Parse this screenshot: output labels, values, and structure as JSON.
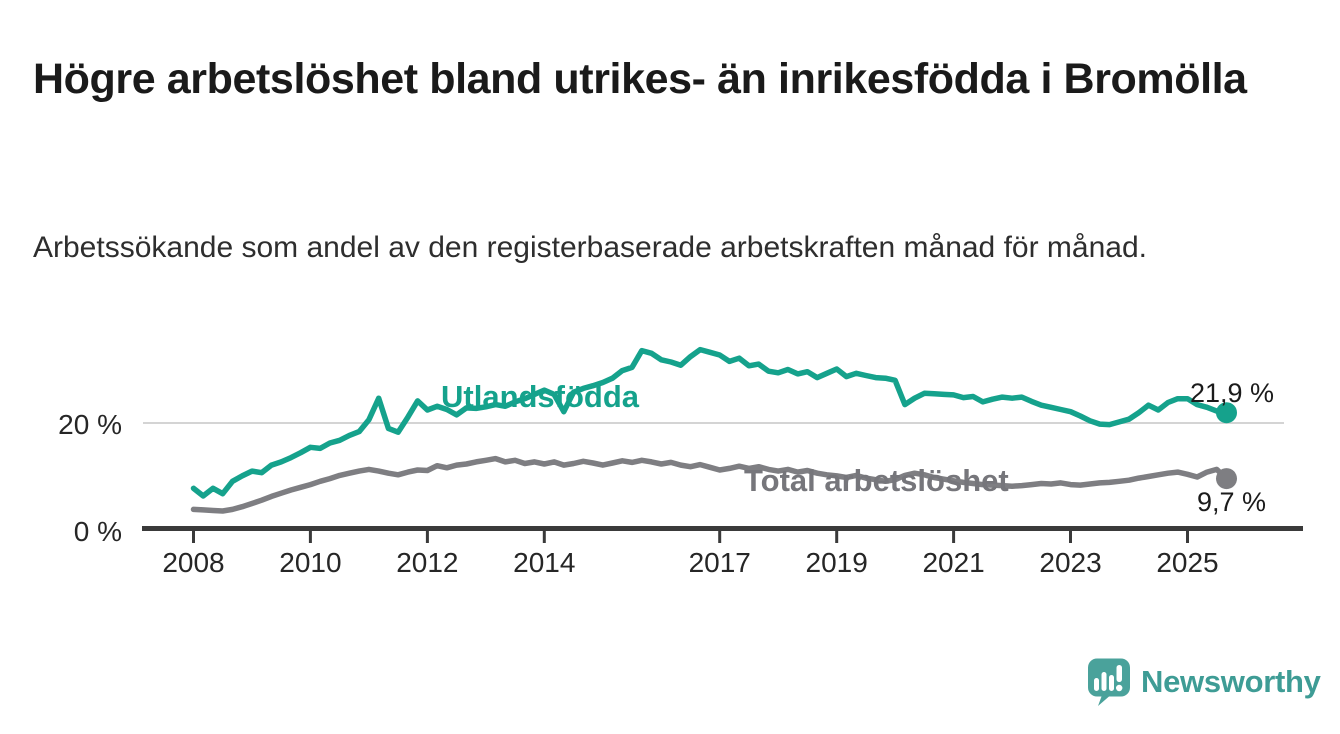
{
  "header": {
    "title": "Högre arbetslöshet bland utrikes- än inrikesfödda i Bromölla",
    "subtitle": "Arbetssökande som andel av den registerbaserade arbetskraften månad för månad."
  },
  "footer": {
    "brand": "Newsworthy",
    "logo_icon": "speech-bubble-with-bar-chart-and-exclamation"
  },
  "colors": {
    "accent_teal": "#15A28C",
    "series_gray": "#7E7E82",
    "axis": "#3A3A3A",
    "gridline": "#D4D4D4",
    "logo_teal": "#3E9C95",
    "logo_icon_fill": "#4AA29B"
  },
  "chart_data": {
    "type": "line",
    "title": "Högre arbetslöshet bland utrikes- än inrikesfödda i Bromölla",
    "subtitle": "Arbetssökande som andel av den registerbaserade arbetskraften månad för månad.",
    "unit": "%",
    "grid": "horizontal-only",
    "legend_position": "inline-labels",
    "x_axis": {
      "type": "time-years",
      "ticks": [
        2008,
        2010,
        2012,
        2014,
        2017,
        2019,
        2021,
        2023,
        2025
      ],
      "range": [
        2007.1,
        2027.0
      ]
    },
    "y_axis": {
      "ticks": [
        {
          "value": 0,
          "label": "0 %"
        },
        {
          "value": 20,
          "label": "20 %"
        }
      ],
      "gridlines": [
        20
      ],
      "range": [
        0,
        37
      ]
    },
    "x_start": 2008.0,
    "x_step_years": 0.166667,
    "series": [
      {
        "name": "Utlandsfödda",
        "color": "#15A28C",
        "end_value": 21.9,
        "end_label": "21,9 %",
        "values": [
          7.9,
          6.5,
          7.9,
          6.9,
          9.2,
          10.2,
          11.1,
          10.8,
          12.2,
          12.8,
          13.6,
          14.5,
          15.5,
          15.3,
          16.3,
          16.8,
          17.7,
          18.4,
          20.6,
          24.6,
          19.0,
          18.3,
          21.1,
          24.1,
          22.4,
          23.1,
          22.5,
          21.5,
          22.8,
          22.7,
          23.0,
          23.4,
          23.1,
          23.9,
          24.5,
          25.3,
          26.1,
          25.3,
          22.1,
          25.7,
          26.4,
          26.9,
          27.5,
          28.3,
          29.7,
          30.3,
          33.4,
          32.9,
          31.7,
          31.3,
          30.7,
          32.3,
          33.6,
          33.1,
          32.6,
          31.4,
          32.0,
          30.6,
          30.9,
          29.6,
          29.3,
          29.9,
          29.1,
          29.5,
          28.4,
          29.2,
          30.0,
          28.6,
          29.2,
          28.8,
          28.4,
          28.3,
          27.9,
          23.4,
          24.6,
          25.5,
          25.4,
          25.3,
          25.2,
          24.7,
          24.9,
          23.9,
          24.4,
          24.8,
          24.6,
          24.8,
          24.0,
          23.3,
          22.9,
          22.5,
          22.1,
          21.3,
          20.4,
          19.8,
          19.7,
          20.2,
          20.7,
          21.9,
          23.3,
          22.4,
          23.8,
          24.5,
          24.5,
          23.4,
          22.9,
          22.2,
          21.9
        ]
      },
      {
        "name": "Total arbetslöshet",
        "color": "#7E7E82",
        "end_value": 9.7,
        "end_label": "9,7 %",
        "values": [
          4.0,
          3.9,
          3.8,
          3.7,
          4.0,
          4.5,
          5.1,
          5.7,
          6.4,
          7.0,
          7.6,
          8.1,
          8.6,
          9.2,
          9.7,
          10.3,
          10.7,
          11.1,
          11.4,
          11.1,
          10.7,
          10.4,
          10.9,
          11.3,
          11.2,
          12.1,
          11.7,
          12.2,
          12.4,
          12.8,
          13.1,
          13.4,
          12.8,
          13.1,
          12.5,
          12.8,
          12.4,
          12.8,
          12.2,
          12.5,
          12.9,
          12.6,
          12.2,
          12.6,
          13.0,
          12.7,
          13.1,
          12.8,
          12.4,
          12.7,
          12.2,
          11.9,
          12.3,
          11.8,
          11.3,
          11.6,
          12.0,
          11.6,
          11.9,
          11.4,
          11.1,
          11.4,
          10.9,
          11.2,
          10.7,
          10.4,
          10.2,
          9.9,
          10.3,
          9.8,
          9.5,
          9.2,
          9.5,
          10.3,
          10.7,
          10.4,
          9.9,
          9.6,
          9.3,
          9.0,
          8.8,
          8.6,
          8.5,
          8.4,
          8.3,
          8.4,
          8.6,
          8.8,
          8.7,
          8.9,
          8.6,
          8.5,
          8.7,
          8.9,
          9.0,
          9.2,
          9.4,
          9.8,
          10.1,
          10.4,
          10.7,
          10.9,
          10.5,
          10.0,
          10.9,
          11.4,
          9.7
        ]
      }
    ]
  }
}
